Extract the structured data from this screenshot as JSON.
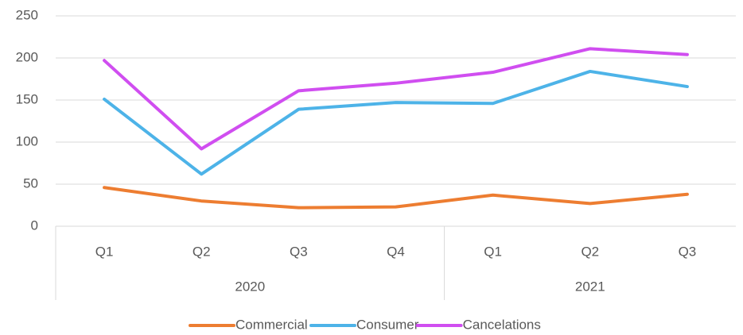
{
  "chart_data": {
    "type": "line",
    "categories": [
      "Q1",
      "Q2",
      "Q3",
      "Q4",
      "Q1",
      "Q2",
      "Q3"
    ],
    "category_groups": [
      {
        "name": "2020",
        "size": 4
      },
      {
        "name": "2021",
        "size": 3
      }
    ],
    "series": [
      {
        "name": "Commercial",
        "color": "#ed7d31",
        "values": [
          46,
          30,
          22,
          23,
          37,
          27,
          38
        ]
      },
      {
        "name": "Consumer",
        "color": "#4db3e8",
        "values": [
          151,
          62,
          139,
          147,
          146,
          184,
          166
        ]
      },
      {
        "name": "Cancelations",
        "color": "#d04ef0",
        "values": [
          197,
          92,
          161,
          170,
          183,
          211,
          204
        ]
      }
    ],
    "ylim": [
      0,
      250
    ],
    "yticks": [
      0,
      50,
      100,
      150,
      200,
      250
    ],
    "grid": true,
    "legend": "bottom"
  }
}
